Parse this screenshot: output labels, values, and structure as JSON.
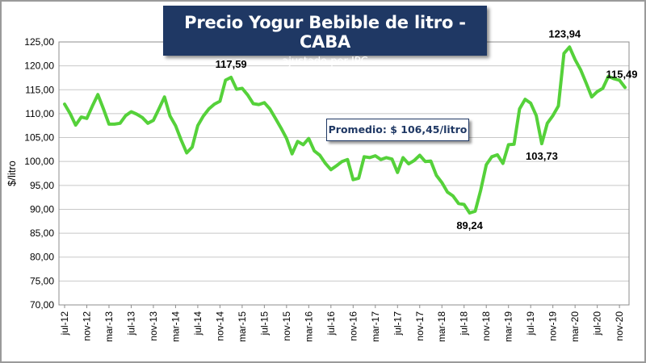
{
  "chart_data": {
    "type": "line",
    "title": "Precio Yogur Bebible de litro - CABA",
    "subtitle": "- ajustado por IPC -",
    "ylabel": "$/litro",
    "xlabel": "",
    "ylim": [
      70,
      125
    ],
    "y_ticks": [
      "70,00",
      "75,00",
      "80,00",
      "85,00",
      "90,00",
      "95,00",
      "100,00",
      "105,00",
      "110,00",
      "115,00",
      "120,00",
      "125,00"
    ],
    "x_tick_labels": [
      "jul-12",
      "nov-12",
      "mar-13",
      "jul-13",
      "nov-13",
      "mar-14",
      "jul-14",
      "nov-14",
      "mar-15",
      "jul-15",
      "nov-15",
      "mar-16",
      "jul-16",
      "nov-16",
      "mar-17",
      "jul-17",
      "nov-17",
      "mar-18",
      "jul-18",
      "nov-18",
      "mar-19",
      "jul-19",
      "nov-19",
      "mar-20",
      "jul-20",
      "nov-20"
    ],
    "grid": true,
    "legend": "none",
    "line_color": "#55d13a",
    "series": [
      {
        "x": [
          "jul-12",
          "ago-12",
          "sep-12",
          "oct-12",
          "nov-12",
          "dic-12",
          "ene-13",
          "feb-13",
          "mar-13",
          "abr-13",
          "may-13",
          "jun-13",
          "jul-13",
          "ago-13",
          "sep-13",
          "oct-13",
          "nov-13",
          "dic-13",
          "ene-14",
          "feb-14",
          "mar-14",
          "abr-14",
          "may-14",
          "jun-14",
          "jul-14",
          "ago-14",
          "sep-14",
          "oct-14",
          "nov-14",
          "dic-14",
          "ene-15",
          "feb-15",
          "mar-15",
          "abr-15",
          "may-15",
          "jun-15",
          "jul-15",
          "ago-15",
          "sep-15",
          "oct-15",
          "nov-15",
          "dic-15",
          "ene-16",
          "feb-16",
          "mar-16",
          "abr-16",
          "may-16",
          "jun-16",
          "jul-16",
          "ago-16",
          "sep-16",
          "oct-16",
          "nov-16",
          "dic-16",
          "ene-17",
          "feb-17",
          "mar-17",
          "abr-17",
          "may-17",
          "jun-17",
          "jul-17",
          "ago-17",
          "sep-17",
          "oct-17",
          "nov-17",
          "dic-17",
          "ene-18",
          "feb-18",
          "mar-18",
          "abr-18",
          "may-18",
          "jun-18",
          "jul-18",
          "ago-18",
          "sep-18",
          "oct-18",
          "nov-18",
          "dic-18",
          "ene-19",
          "feb-19",
          "mar-19",
          "abr-19",
          "may-19",
          "jun-19",
          "jul-19",
          "ago-19",
          "sep-19",
          "oct-19",
          "nov-19",
          "dic-19",
          "ene-20",
          "feb-20",
          "mar-20",
          "abr-20",
          "may-20",
          "jun-20",
          "jul-20",
          "ago-20",
          "sep-20",
          "oct-20",
          "nov-20",
          "dic-20"
        ],
        "values": [
          112.0,
          110.0,
          107.6,
          109.3,
          109.0,
          111.6,
          114.0,
          111.0,
          107.8,
          107.8,
          108.0,
          109.6,
          110.4,
          109.9,
          109.2,
          108.0,
          108.6,
          111.0,
          113.5,
          109.5,
          107.5,
          104.5,
          101.8,
          103.0,
          107.5,
          109.5,
          111.0,
          112.0,
          112.6,
          117.0,
          117.59,
          115.1,
          115.3,
          113.9,
          112.1,
          111.9,
          112.3,
          111.0,
          109.0,
          107.0,
          104.8,
          101.6,
          104.2,
          103.5,
          104.8,
          102.2,
          101.3,
          99.6,
          98.3,
          99.1,
          100.0,
          100.4,
          96.2,
          96.5,
          101.0,
          100.8,
          101.2,
          100.4,
          100.8,
          100.5,
          97.7,
          100.8,
          99.5,
          100.2,
          101.3,
          100.0,
          100.1,
          97.1,
          95.6,
          93.6,
          92.8,
          91.2,
          91.0,
          89.24,
          89.6,
          94.0,
          99.3,
          101.0,
          101.4,
          99.6,
          103.5,
          103.6,
          111.0,
          113.0,
          112.2,
          109.6,
          103.73,
          108.0,
          109.6,
          111.6,
          122.6,
          123.94,
          121.3,
          119.2,
          116.4,
          113.5,
          114.6,
          115.3,
          117.8,
          117.3,
          117.0,
          115.49
        ]
      }
    ],
    "annotations": [
      {
        "text": "117,59",
        "index": 30
      },
      {
        "text": "89,24",
        "index": 73
      },
      {
        "text": "103,73",
        "index": 86
      },
      {
        "text": "123,94",
        "index": 91
      },
      {
        "text": "115,49",
        "index": 101
      }
    ],
    "average_label": "Promedio: $ 106,45/litro"
  }
}
